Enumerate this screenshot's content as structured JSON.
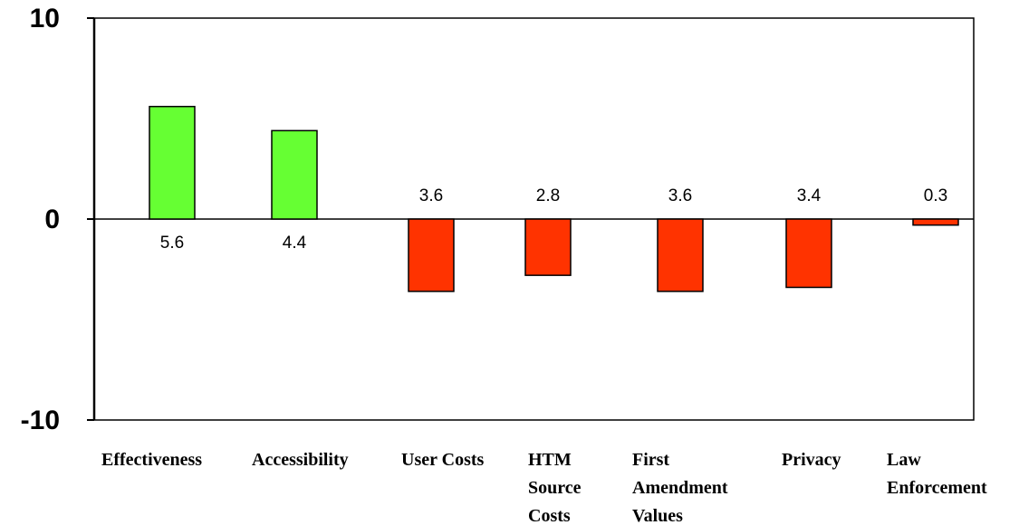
{
  "chart_data": {
    "type": "bar",
    "categories": [
      [
        "Effectiveness"
      ],
      [
        "Accessibility"
      ],
      [
        "User Costs"
      ],
      [
        "HTM",
        "Source",
        "Costs"
      ],
      [
        "First",
        "Amendment",
        "Values"
      ],
      [
        "Privacy"
      ],
      [
        "Law",
        "Enforcement"
      ]
    ],
    "values": [
      5.6,
      4.4,
      -3.6,
      -2.8,
      -3.6,
      -3.4,
      -0.3
    ],
    "data_labels": [
      "5.6",
      "4.4",
      "3.6",
      "2.8",
      "3.6",
      "3.4",
      "0.3"
    ],
    "ylim": [
      -10,
      10
    ],
    "yticks": [
      "10",
      "0",
      "-10"
    ],
    "colors": {
      "positive": "#66ff33",
      "negative": "#ff3300",
      "outline": "#000000"
    },
    "grid": false,
    "legend": "none"
  }
}
